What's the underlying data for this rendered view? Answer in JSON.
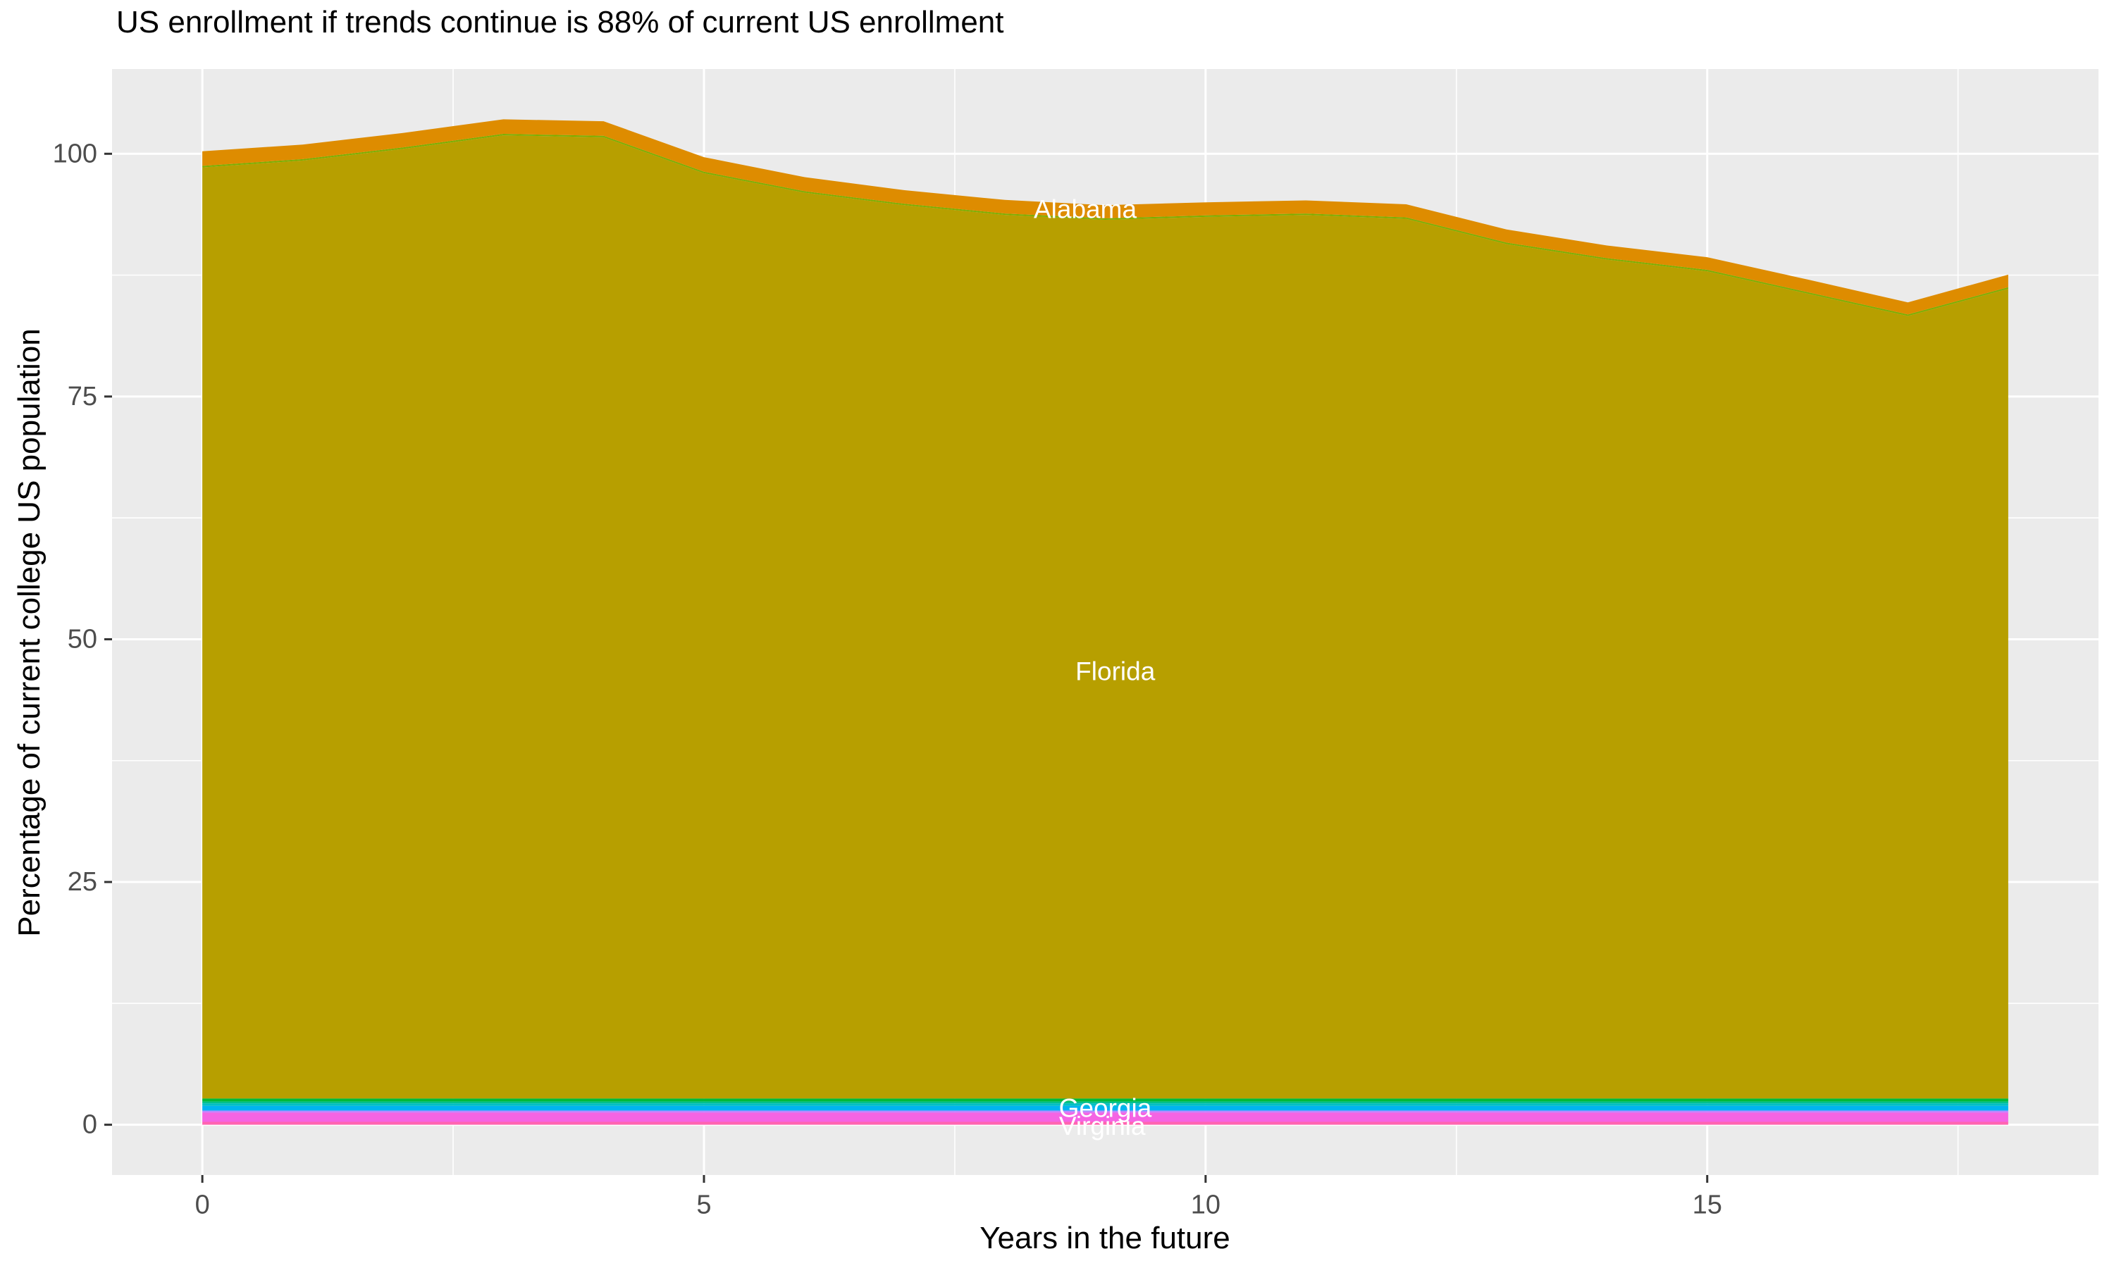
{
  "title": "US enrollment if trends continue is 88% of current US enrollment",
  "colors": {
    "panel_background": "#EBEBEB",
    "grid": "#FFFFFF",
    "tick_label_text": "#4D4D4D",
    "tick_mark": "#333333",
    "title_text": "#000000",
    "area_label_text": "#FFFFFF"
  },
  "chart_data": {
    "type": "area",
    "stacked": true,
    "title": "US enrollment if trends continue is 88% of current US enrollment",
    "xlabel": "Years in the future",
    "ylabel": "Percentage of current college US population",
    "x": [
      0,
      1,
      2,
      3,
      4,
      5,
      6,
      7,
      8,
      9,
      10,
      11,
      12,
      13,
      14,
      15,
      16,
      17,
      18
    ],
    "xlim": [
      0,
      18
    ],
    "x_ticks": {
      "values": [
        0,
        5,
        10,
        15
      ],
      "labels": [
        "0",
        "5",
        "10",
        "15"
      ]
    },
    "y_ticks": {
      "values": [
        0,
        25,
        50,
        75,
        100
      ],
      "labels": [
        "0",
        "25",
        "50",
        "75",
        "100"
      ]
    },
    "y_minor_ticks": [
      12.5,
      37.5,
      62.5,
      87.5
    ],
    "x_minor_ticks": [
      2.5,
      7.5,
      12.5,
      17.5
    ],
    "grid": true,
    "legend_position": "none",
    "total_at_final_year_pct": 88,
    "series_note": "series listed bottom-to-top of the stack; only four strips carry visible labels",
    "series": [
      {
        "name": "virginia",
        "label": "Virginia",
        "color": "#FF64B0",
        "value": 0.3
      },
      {
        "name": "strip-magenta",
        "label": null,
        "color": "#F564E3",
        "value": 0.95
      },
      {
        "name": "strip-purple",
        "label": null,
        "color": "#C77CFF",
        "value": 0.15
      },
      {
        "name": "strip-blue",
        "label": null,
        "color": "#619CFF",
        "value": 0.1
      },
      {
        "name": "strip-azure",
        "label": null,
        "color": "#00B4F0",
        "value": 0.45
      },
      {
        "name": "strip-cyan",
        "label": null,
        "color": "#00BFC4",
        "value": 0.25
      },
      {
        "name": "strip-teal",
        "label": null,
        "color": "#00C08B",
        "value": 0.2
      },
      {
        "name": "georgia",
        "label": "Georgia",
        "color": "#00BA38",
        "value": 0.3
      },
      {
        "name": "florida",
        "label": "Florida",
        "color": "#B79F00",
        "values": [
          95.9,
          96.6,
          97.8,
          99.2,
          99.0,
          95.3,
          93.3,
          92.0,
          91.0,
          90.5,
          90.8,
          91.0,
          90.6,
          88.0,
          86.4,
          85.2,
          82.9,
          80.6,
          83.4
        ]
      },
      {
        "name": "strip-yellowgreen",
        "label": null,
        "color": "#7CAE00",
        "value": 0.15
      },
      {
        "name": "alabama",
        "label": "Alabama",
        "color": "#DE8C00",
        "values": [
          1.5,
          1.5,
          1.5,
          1.5,
          1.5,
          1.5,
          1.45,
          1.4,
          1.4,
          1.35,
          1.35,
          1.35,
          1.35,
          1.35,
          1.3,
          1.3,
          1.3,
          1.25,
          1.3
        ]
      }
    ],
    "annotations": [
      {
        "text": "Alabama",
        "x": 8.8,
        "y": 94.3
      },
      {
        "text": "Florida",
        "x": 9.1,
        "y": 46.7
      },
      {
        "text": "Georgia",
        "x": 9.0,
        "y": 1.71
      },
      {
        "text": "Virginia",
        "x": 8.97,
        "y": -0.15
      }
    ]
  }
}
